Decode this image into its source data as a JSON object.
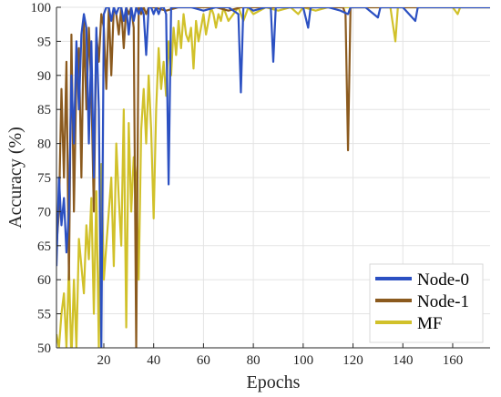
{
  "chart_data": {
    "type": "line",
    "xlabel": "Epochs",
    "ylabel": "Accuracy (%)",
    "xlim": [
      1,
      175
    ],
    "ylim": [
      50,
      100
    ],
    "xticks": [
      20,
      40,
      60,
      80,
      100,
      120,
      140,
      160
    ],
    "yticks": [
      50,
      55,
      60,
      65,
      70,
      75,
      80,
      85,
      90,
      95,
      100
    ],
    "grid": true,
    "legend_position": "bottom-right",
    "series": [
      {
        "name": "Node-0",
        "color": "#2b50c2",
        "points": [
          [
            1,
            62
          ],
          [
            2,
            75
          ],
          [
            3,
            68
          ],
          [
            4,
            72
          ],
          [
            5,
            64
          ],
          [
            6,
            70
          ],
          [
            7,
            90
          ],
          [
            8,
            80
          ],
          [
            9,
            95
          ],
          [
            10,
            85
          ],
          [
            11,
            96
          ],
          [
            12,
            99
          ],
          [
            13,
            97
          ],
          [
            14,
            80
          ],
          [
            15,
            95
          ],
          [
            16,
            75
          ],
          [
            17,
            97
          ],
          [
            18,
            85
          ],
          [
            19,
            50
          ],
          [
            20,
            99
          ],
          [
            21,
            100
          ],
          [
            22,
            100
          ],
          [
            23,
            98
          ],
          [
            24,
            100
          ],
          [
            25,
            99
          ],
          [
            26,
            100
          ],
          [
            27,
            100
          ],
          [
            28,
            98
          ],
          [
            29,
            100
          ],
          [
            30,
            96
          ],
          [
            31,
            100
          ],
          [
            32,
            98
          ],
          [
            33,
            100
          ],
          [
            34,
            99
          ],
          [
            35,
            100
          ],
          [
            36,
            99
          ],
          [
            37,
            93
          ],
          [
            38,
            100
          ],
          [
            39,
            100
          ],
          [
            40,
            99
          ],
          [
            41,
            100
          ],
          [
            42,
            99
          ],
          [
            43,
            100
          ],
          [
            44,
            100
          ],
          [
            45,
            99
          ],
          [
            46,
            74
          ],
          [
            47,
            100
          ],
          [
            48,
            100
          ],
          [
            49,
            100
          ],
          [
            50,
            100
          ],
          [
            55,
            100
          ],
          [
            60,
            99.5
          ],
          [
            65,
            100
          ],
          [
            70,
            100
          ],
          [
            74,
            99
          ],
          [
            75,
            87.5
          ],
          [
            76,
            100
          ],
          [
            78,
            100
          ],
          [
            80,
            99.5
          ],
          [
            85,
            100
          ],
          [
            87,
            100
          ],
          [
            88,
            92
          ],
          [
            89,
            100
          ],
          [
            95,
            100
          ],
          [
            100,
            100
          ],
          [
            102,
            97
          ],
          [
            103,
            100
          ],
          [
            110,
            100
          ],
          [
            115,
            99.5
          ],
          [
            118,
            99
          ],
          [
            119,
            100
          ],
          [
            125,
            100
          ],
          [
            130,
            98.5
          ],
          [
            131,
            100
          ],
          [
            140,
            100
          ],
          [
            145,
            98
          ],
          [
            146,
            100
          ],
          [
            150,
            100
          ],
          [
            160,
            100
          ],
          [
            175,
            100
          ]
        ]
      },
      {
        "name": "Node-1",
        "color": "#8b5a1e",
        "points": [
          [
            1,
            65
          ],
          [
            2,
            70
          ],
          [
            3,
            88
          ],
          [
            4,
            75
          ],
          [
            5,
            92
          ],
          [
            6,
            60
          ],
          [
            7,
            96
          ],
          [
            8,
            70
          ],
          [
            9,
            90
          ],
          [
            10,
            94
          ],
          [
            11,
            75
          ],
          [
            12,
            98
          ],
          [
            13,
            85
          ],
          [
            14,
            97
          ],
          [
            15,
            88
          ],
          [
            16,
            70
          ],
          [
            17,
            96
          ],
          [
            18,
            92
          ],
          [
            19,
            99
          ],
          [
            20,
            97
          ],
          [
            21,
            88
          ],
          [
            22,
            100
          ],
          [
            23,
            90
          ],
          [
            24,
            100
          ],
          [
            25,
            99
          ],
          [
            26,
            96
          ],
          [
            27,
            100
          ],
          [
            28,
            94
          ],
          [
            29,
            100
          ],
          [
            30,
            99
          ],
          [
            31,
            100
          ],
          [
            32,
            97
          ],
          [
            33,
            50
          ],
          [
            34,
            100
          ],
          [
            35,
            99
          ],
          [
            36,
            100
          ],
          [
            37,
            99
          ],
          [
            38,
            100
          ],
          [
            40,
            100
          ],
          [
            45,
            99.5
          ],
          [
            50,
            100
          ],
          [
            55,
            100
          ],
          [
            60,
            100
          ],
          [
            65,
            100
          ],
          [
            70,
            99.5
          ],
          [
            75,
            100
          ],
          [
            80,
            100
          ],
          [
            90,
            100
          ],
          [
            100,
            100
          ],
          [
            110,
            100
          ],
          [
            116,
            100
          ],
          [
            117,
            99
          ],
          [
            118,
            79
          ],
          [
            119,
            100
          ],
          [
            120,
            100
          ],
          [
            130,
            100
          ],
          [
            140,
            100
          ],
          [
            150,
            100
          ],
          [
            160,
            100
          ],
          [
            175,
            100
          ]
        ]
      },
      {
        "name": "MF",
        "color": "#d1c12a",
        "points": [
          [
            1,
            52
          ],
          [
            2,
            50
          ],
          [
            3,
            55
          ],
          [
            4,
            58
          ],
          [
            5,
            50
          ],
          [
            6,
            62
          ],
          [
            7,
            48
          ],
          [
            8,
            60
          ],
          [
            9,
            50
          ],
          [
            10,
            66
          ],
          [
            11,
            62
          ],
          [
            12,
            58
          ],
          [
            13,
            68
          ],
          [
            14,
            63
          ],
          [
            15,
            72
          ],
          [
            16,
            55
          ],
          [
            17,
            73
          ],
          [
            18,
            50
          ],
          [
            19,
            77
          ],
          [
            20,
            60
          ],
          [
            21,
            65
          ],
          [
            22,
            70
          ],
          [
            23,
            75
          ],
          [
            24,
            62
          ],
          [
            25,
            80
          ],
          [
            26,
            72
          ],
          [
            27,
            65
          ],
          [
            28,
            85
          ],
          [
            29,
            53
          ],
          [
            30,
            83
          ],
          [
            31,
            70
          ],
          [
            32,
            78
          ],
          [
            33,
            75
          ],
          [
            34,
            60
          ],
          [
            35,
            82
          ],
          [
            36,
            88
          ],
          [
            37,
            80
          ],
          [
            38,
            90
          ],
          [
            39,
            82
          ],
          [
            40,
            69
          ],
          [
            41,
            85
          ],
          [
            42,
            94
          ],
          [
            43,
            88
          ],
          [
            44,
            92
          ],
          [
            45,
            87
          ],
          [
            46,
            95
          ],
          [
            47,
            90
          ],
          [
            48,
            97
          ],
          [
            49,
            93
          ],
          [
            50,
            98
          ],
          [
            51,
            94
          ],
          [
            52,
            99
          ],
          [
            53,
            96
          ],
          [
            54,
            95
          ],
          [
            55,
            97
          ],
          [
            56,
            91
          ],
          [
            57,
            98
          ],
          [
            58,
            95
          ],
          [
            59,
            97
          ],
          [
            60,
            99
          ],
          [
            61,
            96
          ],
          [
            62,
            98
          ],
          [
            63,
            100
          ],
          [
            64,
            99
          ],
          [
            65,
            97
          ],
          [
            66,
            99
          ],
          [
            67,
            98
          ],
          [
            68,
            100
          ],
          [
            69,
            99
          ],
          [
            70,
            98
          ],
          [
            72,
            99
          ],
          [
            74,
            100
          ],
          [
            76,
            98
          ],
          [
            78,
            100
          ],
          [
            80,
            99
          ],
          [
            85,
            100
          ],
          [
            90,
            99.5
          ],
          [
            95,
            100
          ],
          [
            98,
            99
          ],
          [
            100,
            100
          ],
          [
            105,
            99.5
          ],
          [
            110,
            100
          ],
          [
            115,
            100
          ],
          [
            120,
            100
          ],
          [
            125,
            100
          ],
          [
            130,
            100
          ],
          [
            135,
            100
          ],
          [
            137,
            95
          ],
          [
            138,
            100
          ],
          [
            140,
            100
          ],
          [
            150,
            100
          ],
          [
            160,
            100
          ],
          [
            162,
            99
          ],
          [
            163,
            100
          ],
          [
            170,
            100
          ],
          [
            175,
            100
          ]
        ]
      }
    ]
  }
}
